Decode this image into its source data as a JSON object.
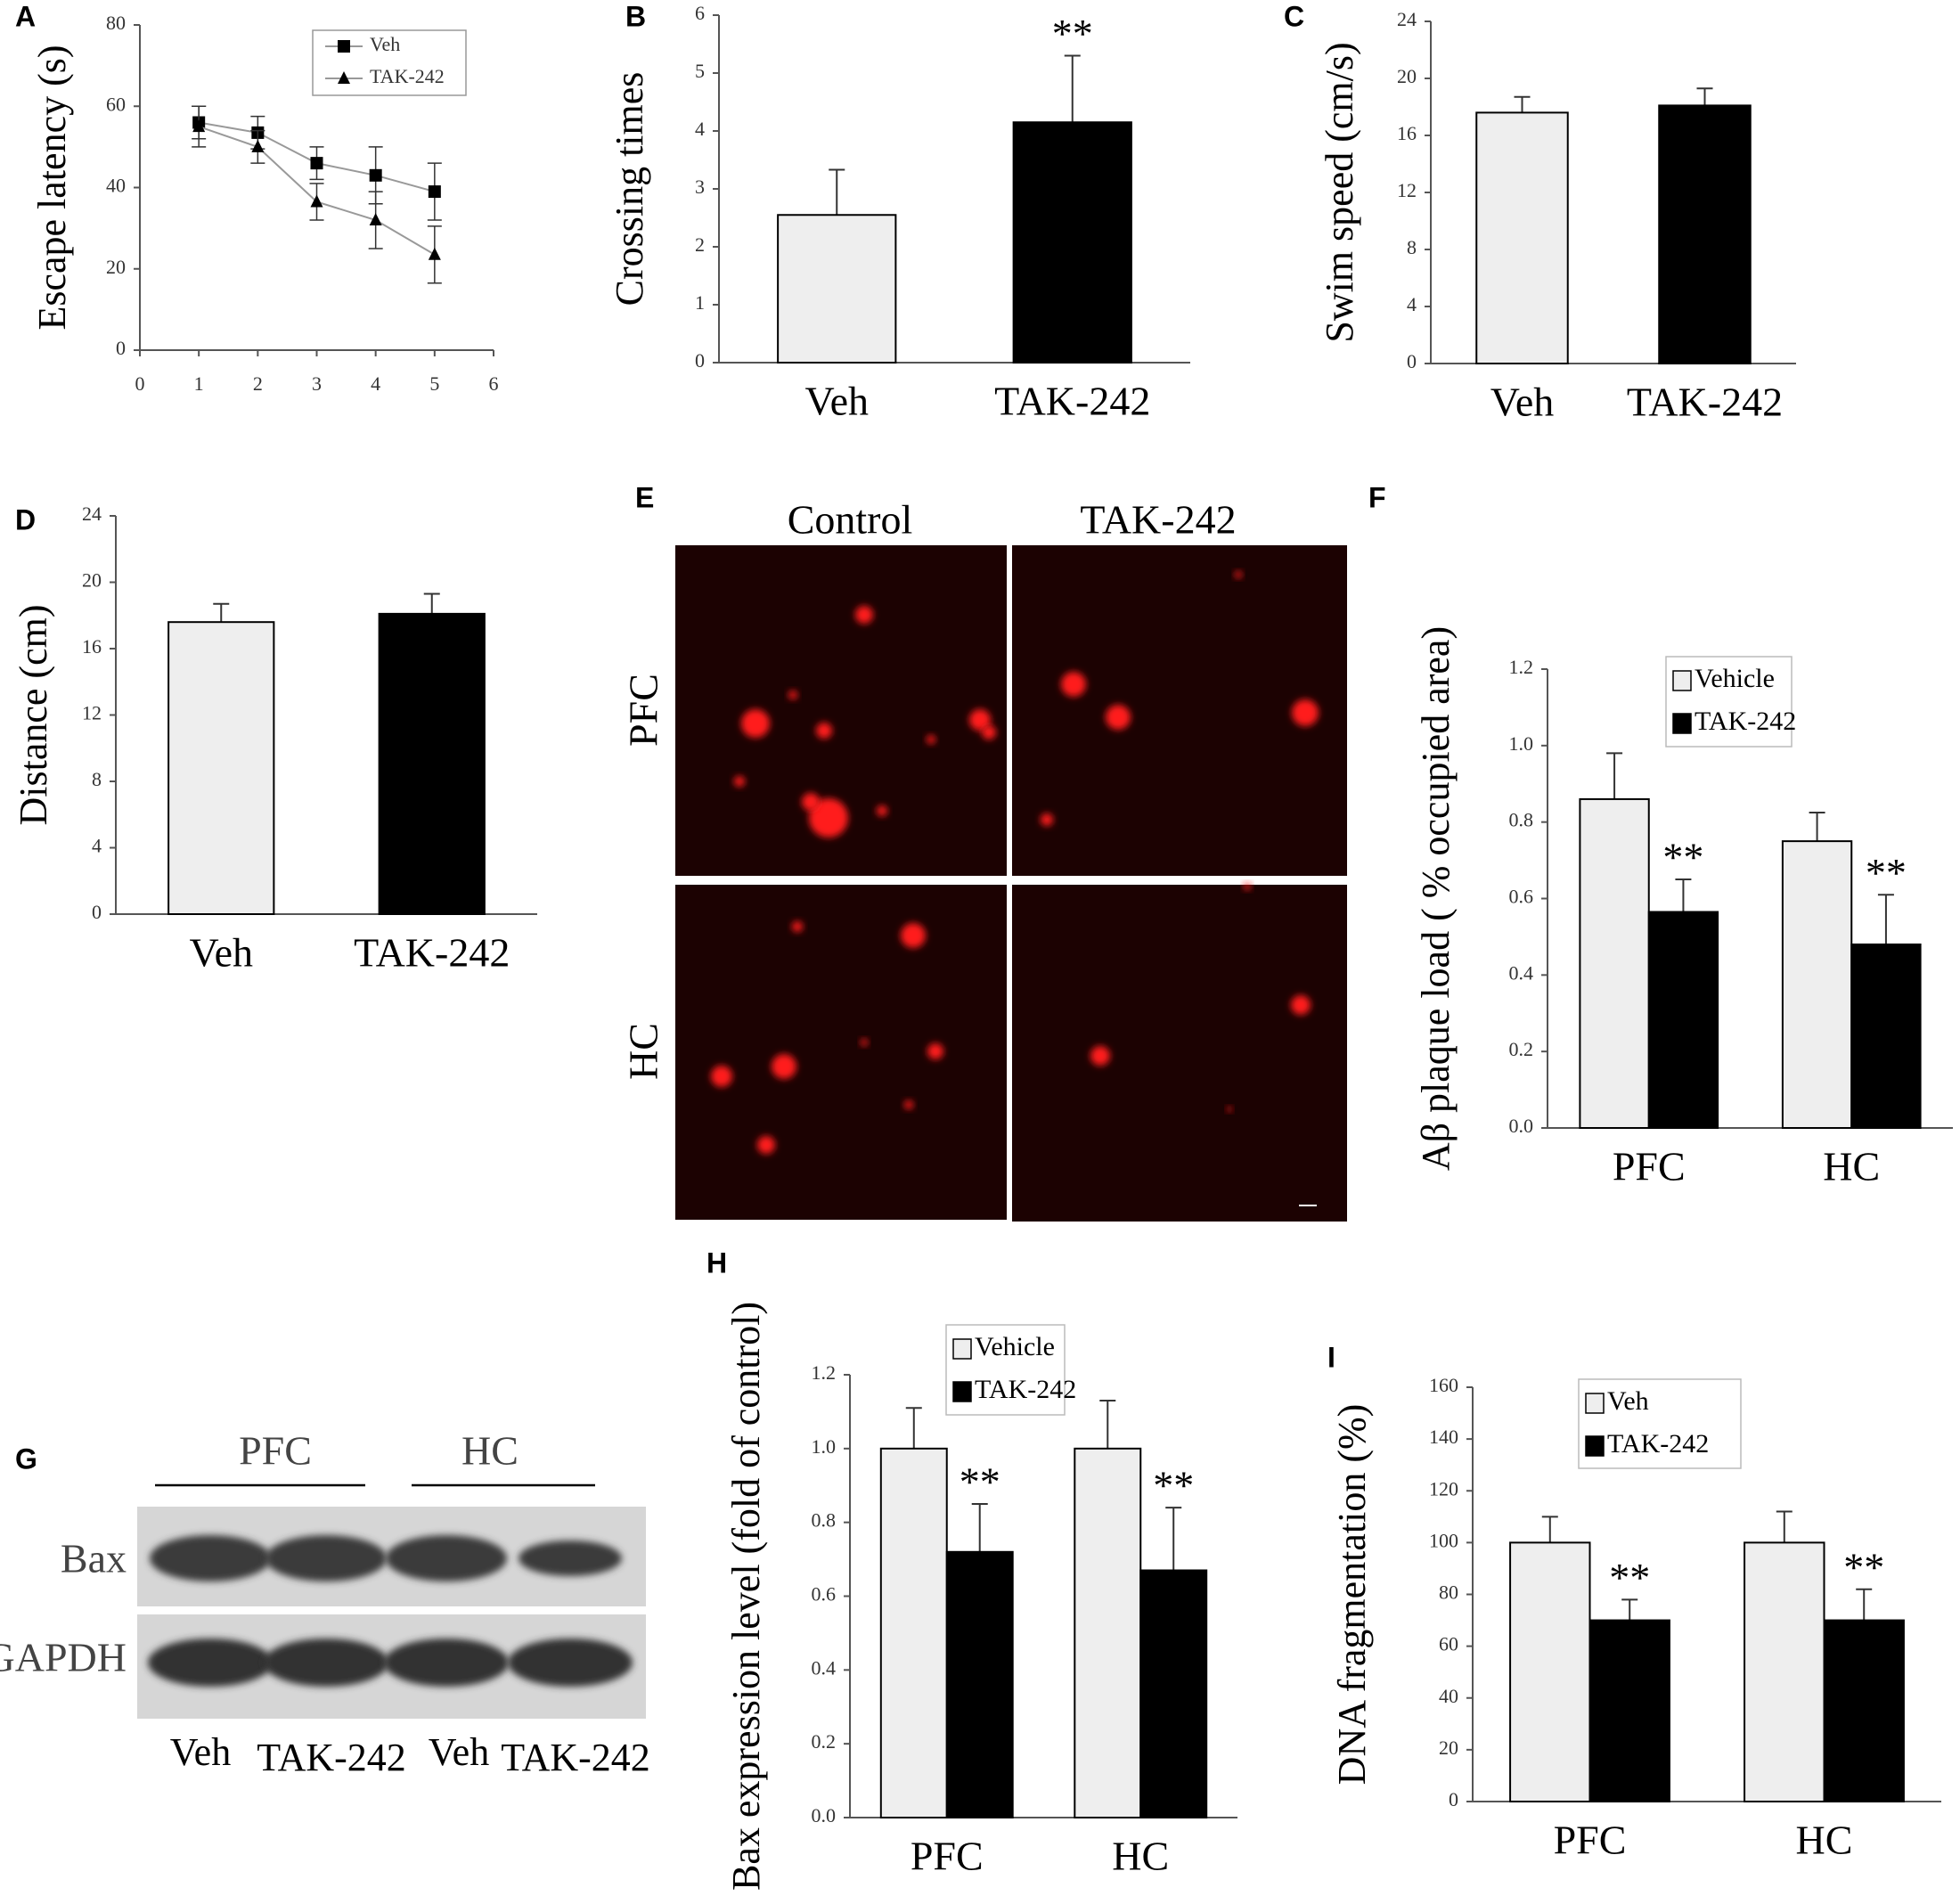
{
  "chart_data": [
    {
      "type": "line",
      "label": "A",
      "ylabel": "Escape latency (s)",
      "line_color": "#999999",
      "x": [
        1,
        2,
        3,
        4,
        5
      ],
      "xlim": [
        0,
        6
      ],
      "xticks": [
        0,
        1,
        2,
        3,
        4,
        5,
        6
      ],
      "ylim": [
        0,
        80
      ],
      "yticks": [
        0,
        20,
        40,
        60,
        80
      ],
      "legend": "upper right",
      "series": [
        {
          "name": "Veh",
          "color": "#000000",
          "marker": "square",
          "values": [
            56,
            53.5,
            46,
            43,
            39
          ],
          "errors": [
            4,
            4,
            4,
            7,
            7
          ]
        },
        {
          "name": "TAK-242",
          "color": "#000000",
          "marker": "triangle",
          "values": [
            55,
            50,
            36.5,
            32,
            23.5
          ],
          "errors": [
            5,
            4,
            4.5,
            7,
            7
          ]
        }
      ]
    },
    {
      "type": "bar",
      "label": "B",
      "ylabel": "Crossing times",
      "categories": [
        "Veh",
        "TAK-242"
      ],
      "values": [
        2.55,
        4.15
      ],
      "errors": [
        0.78,
        1.15
      ],
      "colors": [
        "#eeeeee",
        "#000000"
      ],
      "annotations": [
        null,
        "**"
      ],
      "ylim": [
        0,
        6
      ],
      "yticks": [
        0,
        1,
        2,
        3,
        4,
        5,
        6
      ]
    },
    {
      "type": "bar",
      "label": "C",
      "ylabel": "Swim speed (cm/s)",
      "categories": [
        "Veh",
        "TAK-242"
      ],
      "values": [
        17.6,
        18.1
      ],
      "errors": [
        1.1,
        1.2
      ],
      "colors": [
        "#eeeeee",
        "#000000"
      ],
      "ylim": [
        0,
        24
      ],
      "yticks": [
        0,
        4,
        8,
        12,
        16,
        20,
        24
      ]
    },
    {
      "type": "bar",
      "label": "D",
      "ylabel": "Distance (cm)",
      "categories": [
        "Veh",
        "TAK-242"
      ],
      "values": [
        17.6,
        18.1
      ],
      "errors": [
        1.1,
        1.2
      ],
      "colors": [
        "#eeeeee",
        "#000000"
      ],
      "ylim": [
        0,
        24
      ],
      "yticks": [
        0,
        4,
        8,
        12,
        16,
        20,
        24
      ]
    },
    {
      "type": "grouped_bar",
      "label": "F",
      "ylabel": "Aβ plaque load ( % occupied area)",
      "categories": [
        "PFC",
        "HC"
      ],
      "ylim": [
        0,
        1.2
      ],
      "yticks": [
        {
          "value": 0,
          "label": "0.0"
        },
        0.2,
        0.4,
        0.6,
        0.8,
        {
          "value": 1,
          "label": "1.0"
        },
        1.2
      ],
      "legend": "upper right",
      "series": [
        {
          "name": "Vehicle",
          "color": "#eeeeee",
          "values": [
            0.86,
            0.75
          ],
          "errors": [
            0.12,
            0.075
          ],
          "annotations": [
            null,
            null
          ]
        },
        {
          "name": "TAK-242",
          "color": "#000000",
          "values": [
            0.565,
            0.48
          ],
          "errors": [
            0.085,
            0.13
          ],
          "annotations": [
            "**",
            "**"
          ]
        }
      ]
    },
    {
      "type": "grouped_bar",
      "label": "H",
      "ylabel": "Bax expression level (fold of control)",
      "categories": [
        "PFC",
        "HC"
      ],
      "ylim": [
        0,
        1.2
      ],
      "yticks": [
        {
          "value": 0,
          "label": "0.0"
        },
        0.2,
        0.4,
        0.6,
        0.8,
        {
          "value": 1,
          "label": "1.0"
        },
        1.2
      ],
      "legend": "upper center",
      "series": [
        {
          "name": "Vehicle",
          "color": "#eeeeee",
          "values": [
            1.0,
            1.0
          ],
          "errors": [
            0.11,
            0.13
          ],
          "annotations": [
            null,
            null
          ]
        },
        {
          "name": "TAK-242",
          "color": "#000000",
          "values": [
            0.72,
            0.67
          ],
          "errors": [
            0.13,
            0.17
          ],
          "annotations": [
            "**",
            "**"
          ]
        }
      ]
    },
    {
      "type": "grouped_bar",
      "label": "I",
      "ylabel": "DNA fragmentation (%)",
      "categories": [
        "PFC",
        "HC"
      ],
      "ylim": [
        0,
        160
      ],
      "yticks": [
        0,
        20,
        40,
        60,
        80,
        100,
        120,
        140,
        160
      ],
      "legend": "upper center",
      "series": [
        {
          "name": "Veh",
          "color": "#eeeeee",
          "values": [
            100,
            100
          ],
          "errors": [
            10,
            12
          ],
          "annotations": [
            null,
            null
          ]
        },
        {
          "name": "TAK-242",
          "color": "#000000",
          "values": [
            70,
            70
          ],
          "errors": [
            8,
            12
          ],
          "annotations": [
            "**",
            "**"
          ]
        }
      ]
    }
  ],
  "panel_e": {
    "label": "E",
    "columns": [
      "Control",
      "TAK-242"
    ],
    "rows": [
      "PFC",
      "HC"
    ]
  },
  "panel_g": {
    "label": "G",
    "groups": [
      "PFC",
      "HC"
    ],
    "rows": [
      "Bax",
      "GAPDH"
    ],
    "lanes": [
      "Veh",
      "TAK-242",
      "Veh",
      "TAK-242"
    ]
  }
}
